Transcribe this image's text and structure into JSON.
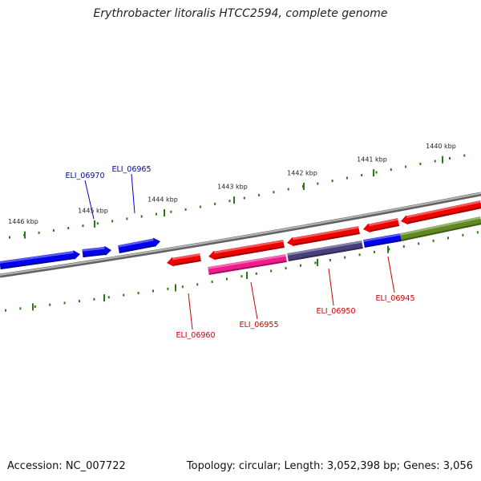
{
  "title": "Erythrobacter litoralis HTCC2594, complete genome",
  "footer": {
    "accession": "Accession: NC_007722",
    "summary": "Topology: circular; Length: 3,052,398 bp; Genes: 3,056"
  },
  "colors": {
    "backbone": "#7a7a7a",
    "tick": "#2a7a14",
    "gene_blue": "#0000ee",
    "gene_red": "#ee0000",
    "gene_pink": "#ee1c8c",
    "gene_slate": "#48407a",
    "gene_olive": "#5f8a22",
    "label_blue": "#0000cc",
    "label_red": "#cc0000"
  },
  "scale": {
    "labels": [
      "1440 kbp",
      "1441 kbp",
      "1442 kbp",
      "1443 kbp",
      "1444 kbp",
      "1445 kbp",
      "1446 kbp"
    ]
  },
  "genes": {
    "upper_track": [
      {
        "color": "gene_blue",
        "strand": "+"
      },
      {
        "color": "gene_blue",
        "strand": "+"
      },
      {
        "color": "gene_blue",
        "strand": "+"
      }
    ],
    "inner_track": [
      {
        "color": "gene_red",
        "strand": "-"
      },
      {
        "color": "gene_red",
        "strand": "-"
      },
      {
        "color": "gene_red",
        "strand": "-"
      },
      {
        "color": "gene_red",
        "strand": "-"
      },
      {
        "color": "gene_red",
        "strand": "-"
      }
    ],
    "lower_track": [
      {
        "color": "gene_pink",
        "strand": "none"
      },
      {
        "color": "gene_slate",
        "strand": "none"
      },
      {
        "color": "gene_blue",
        "strand": "none"
      },
      {
        "color": "gene_olive",
        "strand": "none"
      }
    ]
  },
  "gene_labels": [
    {
      "text": "ELI_06970",
      "color": "label_blue"
    },
    {
      "text": "ELI_06965",
      "color": "label_blue"
    },
    {
      "text": "ELI_06960",
      "color": "label_red"
    },
    {
      "text": "ELI_06955",
      "color": "label_red"
    },
    {
      "text": "ELI_06950",
      "color": "label_red"
    },
    {
      "text": "ELI_06945",
      "color": "label_red"
    }
  ]
}
